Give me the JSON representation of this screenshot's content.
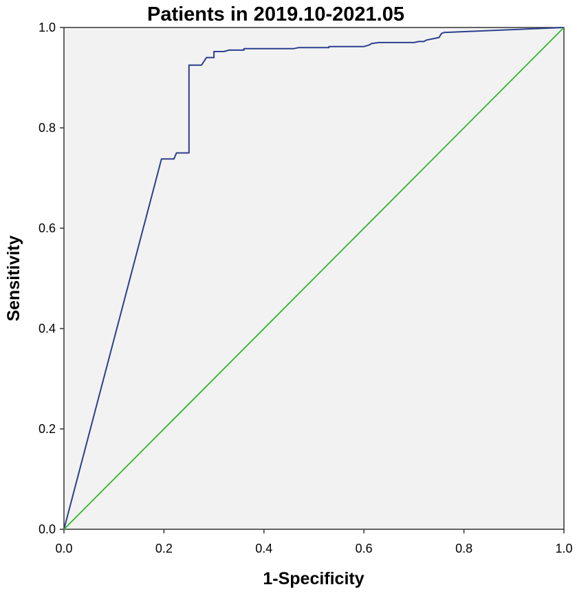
{
  "chart_data": {
    "type": "line",
    "title": "Patients in 2019.10-2021.05",
    "xlabel": "1-Specificity",
    "ylabel": "Sensitivity",
    "xlim": [
      0,
      1
    ],
    "ylim": [
      0,
      1
    ],
    "xticks": [
      "0.0",
      "0.2",
      "0.4",
      "0.6",
      "0.8",
      "1.0"
    ],
    "yticks": [
      "0.0",
      "0.2",
      "0.4",
      "0.6",
      "0.8",
      "1.0"
    ],
    "grid": false,
    "plot_background": "#f2f2f2",
    "series": [
      {
        "color": "#2b3f8c",
        "x": [
          0,
          0.195,
          0.195,
          0.22,
          0.225,
          0.25,
          0.25,
          0.25,
          0.25,
          0.275,
          0.285,
          0.3,
          0.3,
          0.32,
          0.33,
          0.36,
          0.36,
          0.46,
          0.47,
          0.53,
          0.53,
          0.6,
          0.61,
          0.615,
          0.63,
          0.7,
          0.71,
          0.72,
          0.725,
          0.75,
          0.755,
          0.76,
          1.0
        ],
        "y": [
          0,
          0.738,
          0.738,
          0.738,
          0.75,
          0.75,
          0.8,
          0.9,
          0.925,
          0.925,
          0.94,
          0.94,
          0.952,
          0.952,
          0.955,
          0.955,
          0.958,
          0.958,
          0.96,
          0.96,
          0.962,
          0.962,
          0.965,
          0.968,
          0.97,
          0.97,
          0.972,
          0.972,
          0.975,
          0.98,
          0.988,
          0.99,
          1.0
        ]
      },
      {
        "color": "#2db52d",
        "x": [
          0,
          1
        ],
        "y": [
          0,
          1
        ]
      }
    ]
  }
}
